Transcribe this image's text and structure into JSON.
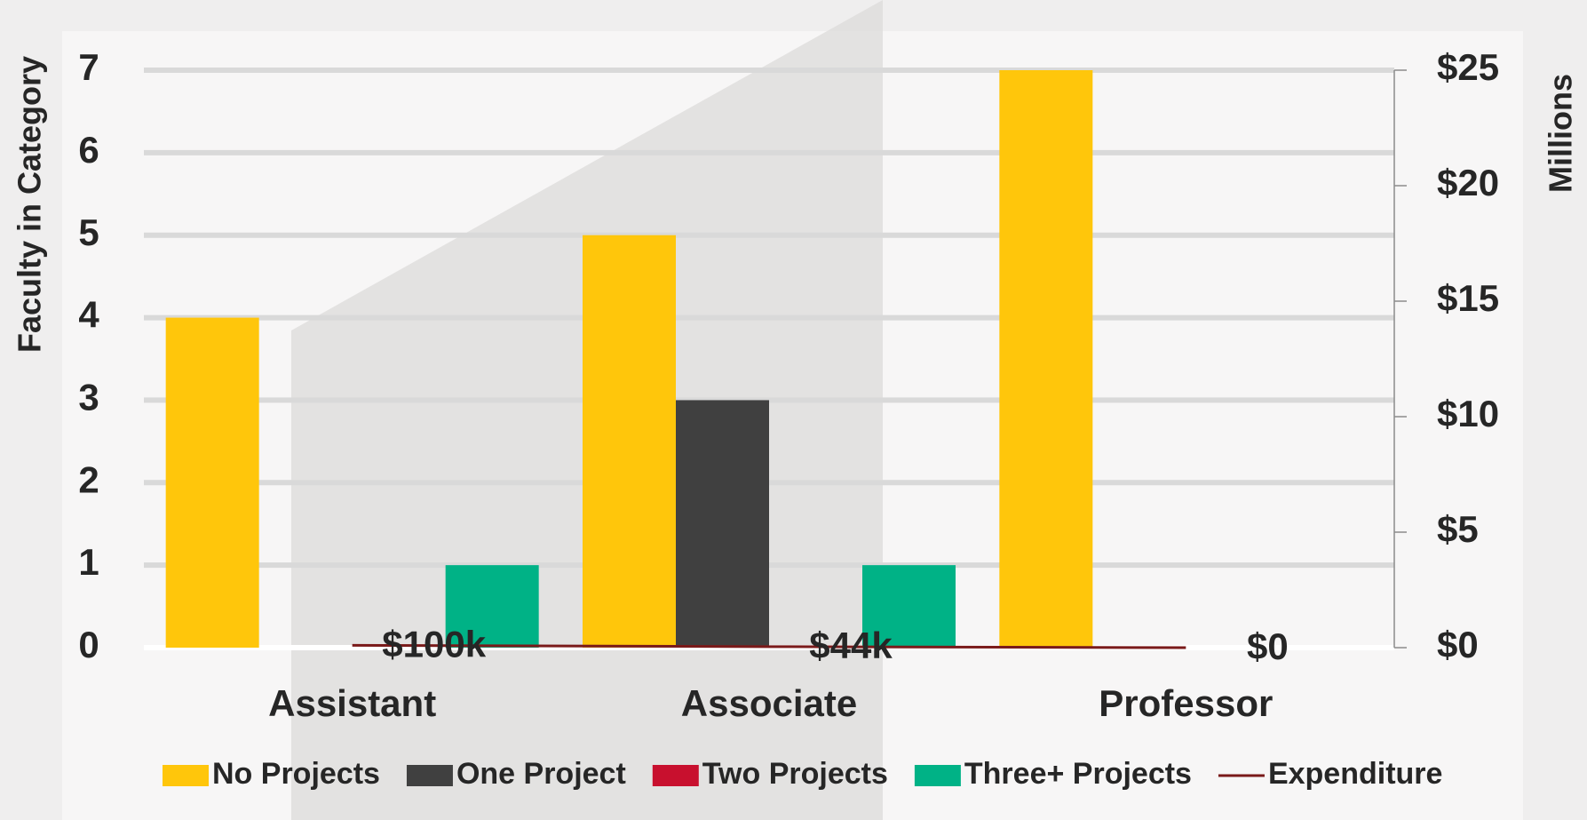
{
  "chart_data": {
    "type": "bar",
    "y_axis_label": "Faculty in Category",
    "y2_axis_label": "Millions",
    "categories": [
      "Assistant",
      "Associate",
      "Professor"
    ],
    "series": [
      {
        "name": "No Projects",
        "color": "#ffc60b",
        "values": [
          4,
          5,
          7
        ]
      },
      {
        "name": "One Project",
        "color": "#404040",
        "values": [
          0,
          3,
          0
        ]
      },
      {
        "name": "Two Projects",
        "color": "#c8102e",
        "values": [
          0,
          0,
          0
        ]
      },
      {
        "name": "Three+ Projects",
        "color": "#00b286",
        "values": [
          1,
          1,
          0
        ]
      },
      {
        "name": "Expenditure",
        "type": "line",
        "axis": "y2",
        "color": "#7a1a1a",
        "values": [
          0.1,
          0.044,
          0
        ],
        "value_labels": [
          "$100k",
          "$44k",
          "$0"
        ]
      }
    ],
    "ylim": [
      0,
      7
    ],
    "yticks": [
      0,
      1,
      2,
      3,
      4,
      5,
      6,
      7
    ],
    "y2lim": [
      0,
      25
    ],
    "y2ticks": [
      {
        "value": 0,
        "label": "$0"
      },
      {
        "value": 5,
        "label": "$5"
      },
      {
        "value": 10,
        "label": "$10"
      },
      {
        "value": 15,
        "label": "$15"
      },
      {
        "value": 20,
        "label": "$20"
      },
      {
        "value": 25,
        "label": "$25"
      }
    ],
    "grid": true,
    "legend": "bottom"
  }
}
